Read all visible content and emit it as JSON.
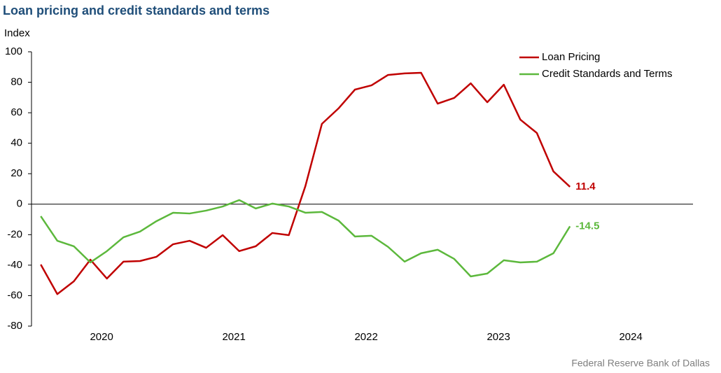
{
  "chart_data": {
    "type": "line",
    "title": "Loan pricing and credit standards and terms",
    "y_label": "Index",
    "source": "Federal Reserve Bank of Dallas",
    "x": [
      2020.04,
      2020.165,
      2020.29,
      2020.415,
      2020.54,
      2020.665,
      2020.79,
      2020.915,
      2021.04,
      2021.165,
      2021.29,
      2021.415,
      2021.54,
      2021.665,
      2021.79,
      2021.915,
      2022.04,
      2022.165,
      2022.29,
      2022.415,
      2022.54,
      2022.665,
      2022.79,
      2022.915,
      2023.04,
      2023.165,
      2023.29,
      2023.415,
      2023.54,
      2023.665,
      2023.79,
      2023.915,
      2024.04
    ],
    "series": [
      {
        "name": "Loan Pricing",
        "color": "#c00000",
        "values": [
          -39.6,
          -59,
          -50.6,
          -36.4,
          -48.8,
          -37.7,
          -37.3,
          -34.5,
          -26.3,
          -24,
          -28.6,
          -20.3,
          -30.8,
          -27.6,
          -18.9,
          -20.3,
          11.8,
          52.7,
          62.8,
          75.2,
          78,
          84.8,
          85.8,
          86.2,
          66,
          69.7,
          79.3,
          66.9,
          78.4,
          55.5,
          46.7,
          21.5,
          11.4
        ]
      },
      {
        "name": "Credit Standards and Terms",
        "color": "#5cb83c",
        "values": [
          -7.9,
          -24,
          -27.6,
          -38.2,
          -30.8,
          -21.7,
          -18,
          -11.1,
          -5.6,
          -6.1,
          -4.2,
          -1.5,
          2.7,
          -2.8,
          0.4,
          -1.5,
          -5.6,
          -5.1,
          -10.7,
          -21.2,
          -20.7,
          -28,
          -37.7,
          -32.2,
          -29.9,
          -35.9,
          -47.4,
          -45.5,
          -36.8,
          -38.2,
          -37.7,
          -32.2,
          -14.5
        ]
      }
    ],
    "xlim": [
      2019.97,
      2024.97
    ],
    "xticks": [
      {
        "value": 2020.5,
        "label": "2020"
      },
      {
        "value": 2021.5,
        "label": "2021"
      },
      {
        "value": 2022.5,
        "label": "2022"
      },
      {
        "value": 2023.5,
        "label": "2023"
      },
      {
        "value": 2024.5,
        "label": "2024"
      }
    ],
    "ylim": [
      -80,
      100
    ],
    "yticks": [
      -80,
      -60,
      -40,
      -20,
      0,
      20,
      40,
      60,
      80,
      100
    ],
    "legend": "top-right",
    "grid": false
  }
}
